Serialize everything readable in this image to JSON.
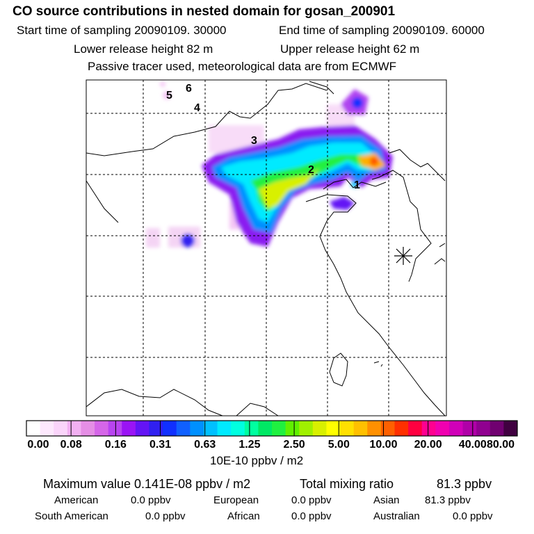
{
  "header": {
    "title": "CO  source contributions in nested domain for gosan_200901",
    "start_label": "Start time of sampling 20090109. 30000",
    "end_label": "End time of sampling 20090109. 60000",
    "lower_height": "Lower release height   82 m",
    "upper_height": "Upper release height   62 m",
    "note": "Passive tracer used, meteorological data are from ECMWF"
  },
  "map": {
    "trajectory_labels": [
      "1",
      "2",
      "3",
      "4",
      "5",
      "6"
    ],
    "receptor_marker": "asterisk-icon"
  },
  "colorbar": {
    "ticks": [
      "0.00",
      "0.08",
      "0.16",
      "0.31",
      "0.63",
      "1.25",
      "2.50",
      "5.00",
      "10.00",
      "20.00",
      "40.00",
      "80.00"
    ],
    "colors": [
      "#ffffff",
      "#fde8fd",
      "#fad4fa",
      "#f2b0f2",
      "#e58ee5",
      "#d566e8",
      "#b844f0",
      "#9a14f5",
      "#6414f5",
      "#3020f0",
      "#1030ff",
      "#1060ff",
      "#0090ff",
      "#00c0ff",
      "#00eaff",
      "#00ffe0",
      "#00ffa0",
      "#00e864",
      "#20f040",
      "#60f000",
      "#a0f000",
      "#d8f000",
      "#ffff00",
      "#ffe000",
      "#ffc000",
      "#ff9000",
      "#ff6000",
      "#ff3000",
      "#ff0040",
      "#ff0090",
      "#f000b0",
      "#d000b8",
      "#b000a8",
      "#900090",
      "#700070",
      "#400040"
    ],
    "unit": "10E-10 ppbv / m2"
  },
  "summary": {
    "max_value": "Maximum value  0.141E-08 ppbv / m2",
    "total_label": "Total mixing ratio",
    "total_value": "81.3 ppbv",
    "regions": [
      {
        "name": "American",
        "value": "0.0 ppbv"
      },
      {
        "name": "European",
        "value": "0.0 ppbv"
      },
      {
        "name": "Asian",
        "value": "81.3 ppbv"
      },
      {
        "name": "South American",
        "value": "0.0 ppbv"
      },
      {
        "name": "African",
        "value": "0.0 ppbv"
      },
      {
        "name": "Australian",
        "value": "0.0 ppbv"
      }
    ]
  }
}
